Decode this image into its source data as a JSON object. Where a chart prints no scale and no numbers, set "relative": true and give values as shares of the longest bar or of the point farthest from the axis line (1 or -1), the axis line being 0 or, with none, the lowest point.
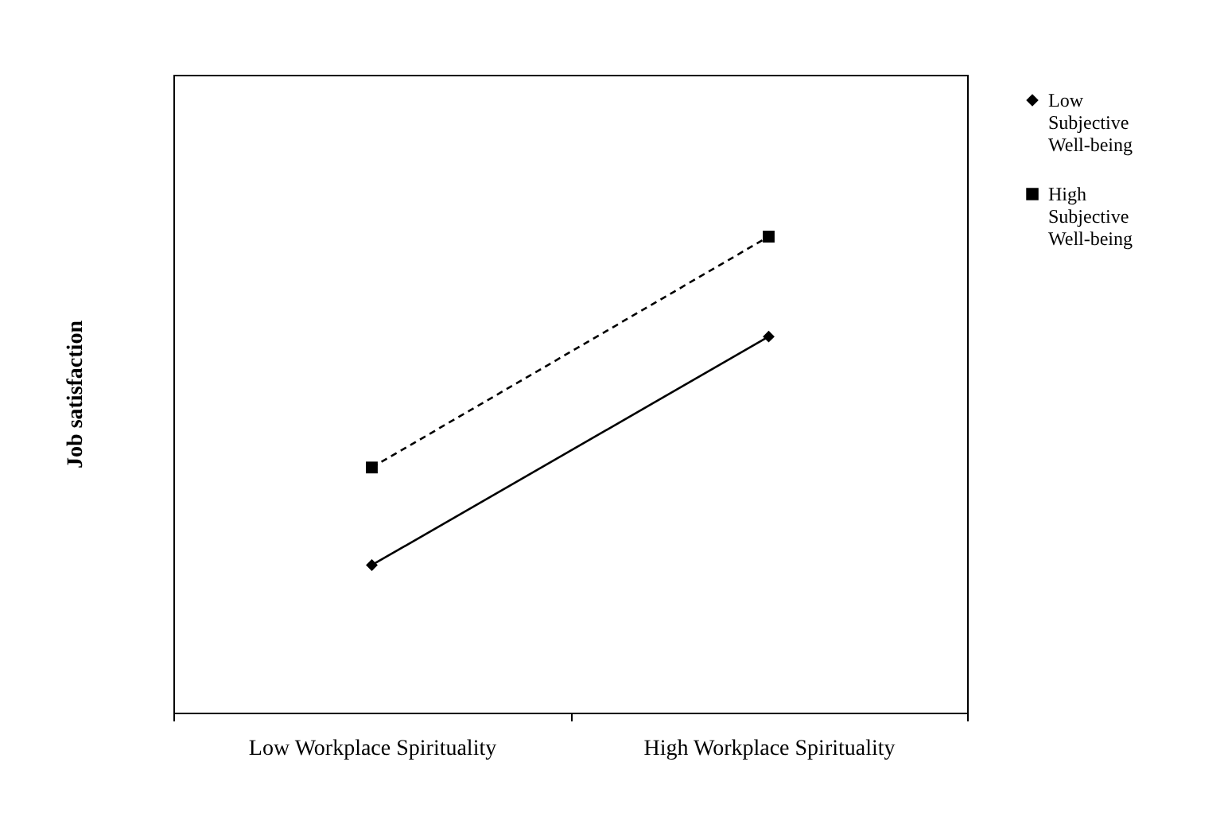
{
  "chart_data": {
    "type": "line",
    "relative": true,
    "ylabel": "Job satisfaction",
    "categories": [
      "Low Workplace Spirituality",
      "High Workplace Spirituality"
    ],
    "legend": "right",
    "grid": false,
    "tick_labels": "x",
    "series": [
      {
        "name": "Low Subjective Well-being",
        "color": "#000000",
        "values": [
          0.31,
          0.79
        ],
        "marker": "diamond",
        "line_style": "solid"
      },
      {
        "name": "High Subjective Well-being",
        "color": "#000000",
        "values": [
          0.515,
          1
        ],
        "marker": "square",
        "line_style": "dashed"
      }
    ]
  }
}
